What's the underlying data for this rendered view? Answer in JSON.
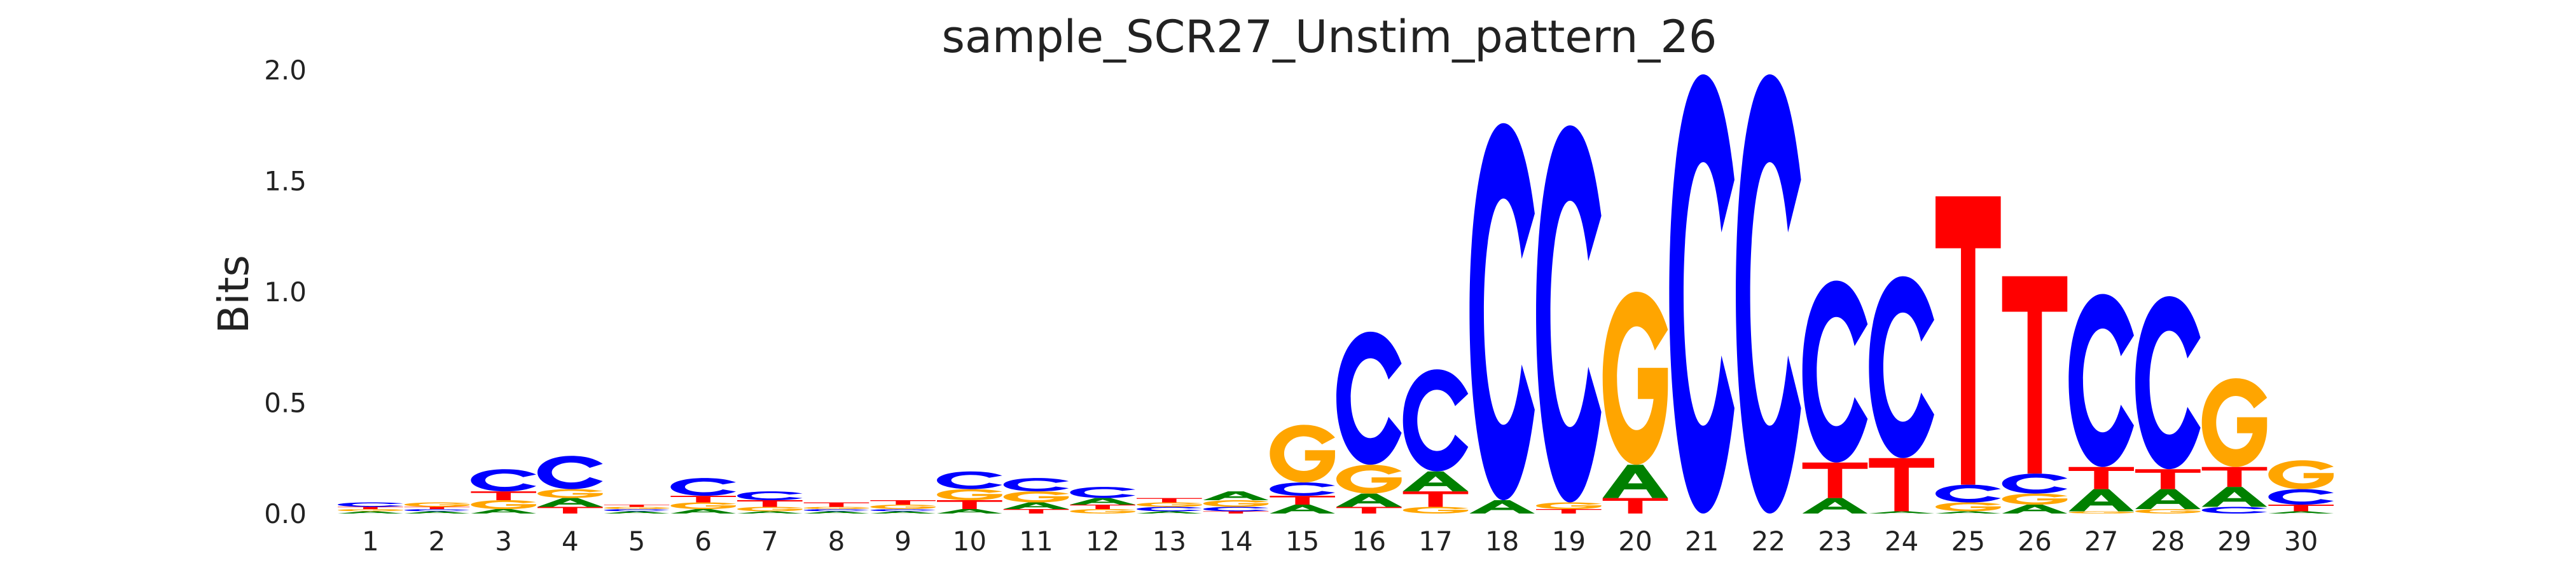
{
  "chart_data": {
    "type": "sequence_logo",
    "title": "sample_SCR27_Unstim_pattern_26",
    "xlabel": "",
    "ylabel": "Bits",
    "ylim": [
      0,
      2.0
    ],
    "yticks": [
      0.0,
      0.5,
      1.0,
      1.5,
      2.0
    ],
    "ytick_labels": [
      "0.0",
      "0.5",
      "1.0",
      "1.5",
      "2.0"
    ],
    "grid": false,
    "legend": "none",
    "colors": {
      "A": "#008000",
      "C": "#0000ff",
      "G": "#ffa500",
      "T": "#ff0000"
    },
    "positions": [
      {
        "label": "1",
        "letters": {
          "A": 0.01,
          "C": 0.02,
          "G": 0.01,
          "T": 0.01
        }
      },
      {
        "label": "2",
        "letters": {
          "A": 0.01,
          "C": 0.01,
          "G": 0.02,
          "T": 0.01
        }
      },
      {
        "label": "3",
        "letters": {
          "A": 0.02,
          "C": 0.1,
          "G": 0.04,
          "T": 0.04
        }
      },
      {
        "label": "4",
        "letters": {
          "A": 0.04,
          "C": 0.15,
          "G": 0.04,
          "T": 0.03
        }
      },
      {
        "label": "5",
        "letters": {
          "A": 0.01,
          "C": 0.01,
          "G": 0.01,
          "T": 0.01
        }
      },
      {
        "label": "6",
        "letters": {
          "A": 0.02,
          "C": 0.08,
          "G": 0.03,
          "T": 0.03
        }
      },
      {
        "label": "7",
        "letters": {
          "A": 0.01,
          "C": 0.04,
          "G": 0.02,
          "T": 0.03
        }
      },
      {
        "label": "8",
        "letters": {
          "A": 0.01,
          "C": 0.01,
          "G": 0.01,
          "T": 0.02
        }
      },
      {
        "label": "9",
        "letters": {
          "A": 0.01,
          "C": 0.01,
          "G": 0.02,
          "T": 0.02
        }
      },
      {
        "label": "10",
        "letters": {
          "A": 0.02,
          "C": 0.08,
          "G": 0.05,
          "T": 0.04
        }
      },
      {
        "label": "11",
        "letters": {
          "A": 0.03,
          "C": 0.06,
          "G": 0.05,
          "T": 0.02
        }
      },
      {
        "label": "12",
        "letters": {
          "A": 0.03,
          "C": 0.05,
          "G": 0.02,
          "T": 0.02
        }
      },
      {
        "label": "13",
        "letters": {
          "A": 0.01,
          "C": 0.02,
          "G": 0.02,
          "T": 0.02
        }
      },
      {
        "label": "14",
        "letters": {
          "A": 0.04,
          "C": 0.02,
          "G": 0.03,
          "T": 0.01
        }
      },
      {
        "label": "15",
        "letters": {
          "A": 0.04,
          "C": 0.06,
          "G": 0.26,
          "T": 0.04
        }
      },
      {
        "label": "16",
        "letters": {
          "A": 0.06,
          "C": 0.6,
          "G": 0.13,
          "T": 0.03
        }
      },
      {
        "label": "17",
        "letters": {
          "A": 0.09,
          "C": 0.46,
          "G": 0.03,
          "T": 0.07
        }
      },
      {
        "label": "18",
        "letters": {
          "A": 0.06,
          "C": 1.7,
          "G": 0.0,
          "T": 0.0
        }
      },
      {
        "label": "19",
        "letters": {
          "A": 0.0,
          "C": 1.7,
          "G": 0.03,
          "T": 0.02
        }
      },
      {
        "label": "20",
        "letters": {
          "A": 0.15,
          "C": 0.0,
          "G": 0.78,
          "T": 0.07
        }
      },
      {
        "label": "21",
        "letters": {
          "A": 0.0,
          "C": 1.98,
          "G": 0.0,
          "T": 0.0
        }
      },
      {
        "label": "22",
        "letters": {
          "A": 0.0,
          "C": 1.98,
          "G": 0.0,
          "T": 0.0
        }
      },
      {
        "label": "23",
        "letters": {
          "A": 0.07,
          "C": 0.82,
          "G": 0.0,
          "T": 0.16
        }
      },
      {
        "label": "24",
        "letters": {
          "A": 0.01,
          "C": 0.82,
          "G": 0.0,
          "T": 0.24
        }
      },
      {
        "label": "25",
        "letters": {
          "A": 0.01,
          "C": 0.08,
          "G": 0.04,
          "T": 1.3
        }
      },
      {
        "label": "26",
        "letters": {
          "A": 0.04,
          "C": 0.09,
          "G": 0.05,
          "T": 0.89
        }
      },
      {
        "label": "27",
        "letters": {
          "A": 0.1,
          "C": 0.78,
          "G": 0.01,
          "T": 0.1
        }
      },
      {
        "label": "28",
        "letters": {
          "A": 0.09,
          "C": 0.78,
          "G": 0.02,
          "T": 0.09
        }
      },
      {
        "label": "29",
        "letters": {
          "A": 0.09,
          "C": 0.03,
          "G": 0.4,
          "T": 0.09
        }
      },
      {
        "label": "30",
        "letters": {
          "A": 0.01,
          "C": 0.07,
          "G": 0.13,
          "T": 0.03
        }
      }
    ]
  }
}
